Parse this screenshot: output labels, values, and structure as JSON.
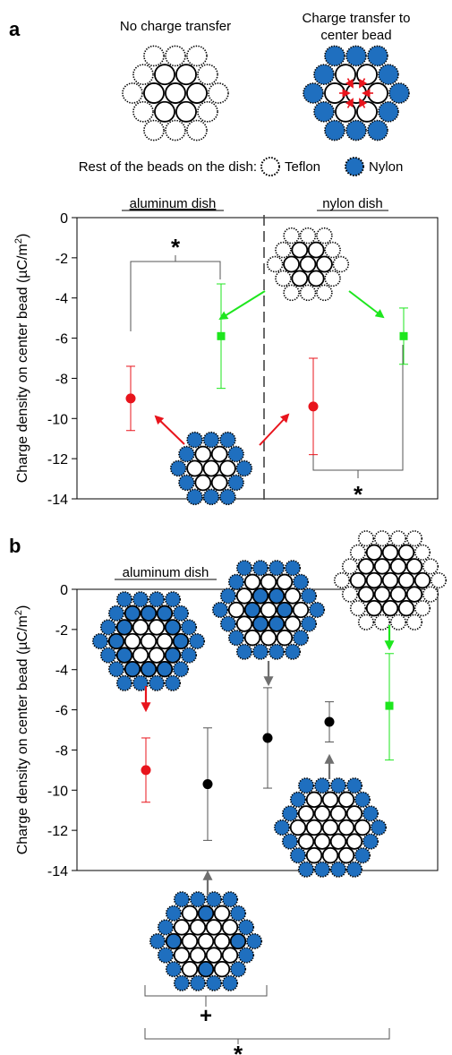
{
  "panel_a": {
    "letter": "a",
    "schematic": {
      "left_title": "No charge transfer",
      "right_title_line1": "Charge transfer to",
      "right_title_line2": "center bead",
      "legend_prefix": "Rest of the beads on the dish:",
      "legend_teflon": "Teflon",
      "legend_nylon": "Nylon"
    },
    "group_labels": [
      "aluminum dish",
      "nylon dish"
    ],
    "significance": [
      "*",
      "*"
    ]
  },
  "panel_b": {
    "letter": "b",
    "group_label": "aluminum dish",
    "significance": [
      "+",
      "*"
    ]
  },
  "colors": {
    "nylon_blue": "#1f6fbf",
    "red": "#e8141c",
    "green": "#1ee61e",
    "dark_gray": "#6f6f6f",
    "black": "#000000"
  },
  "chart_data": [
    {
      "type": "scatter",
      "panel": "a",
      "ylabel": "Charge density on center bead (μC/m²)",
      "ylim": [
        -14,
        0
      ],
      "yticks": [
        "0",
        "-2",
        "-4",
        "-6",
        "-8",
        "-10",
        "-12",
        "-14"
      ],
      "grid": false,
      "divider": "dashed vertical line between aluminum dish and nylon dish",
      "points": [
        {
          "group": "aluminum dish",
          "dish_beads": "Nylon",
          "color": "#e8141c",
          "marker": "circle",
          "y": -9.0,
          "err_low": -10.6,
          "err_high": -7.4
        },
        {
          "group": "aluminum dish",
          "dish_beads": "Teflon",
          "color": "#1ee61e",
          "marker": "square",
          "y": -5.9,
          "err_low": -8.5,
          "err_high": -3.3
        },
        {
          "group": "nylon dish",
          "dish_beads": "Nylon",
          "color": "#e8141c",
          "marker": "circle",
          "y": -9.4,
          "err_low": -11.8,
          "err_high": -7.0
        },
        {
          "group": "nylon dish",
          "dish_beads": "Teflon",
          "color": "#1ee61e",
          "marker": "square",
          "y": -5.9,
          "err_low": -7.3,
          "err_high": -4.5
        }
      ]
    },
    {
      "type": "scatter",
      "panel": "b",
      "ylabel": "Charge density on center bead (μC/m²)",
      "ylim": [
        -14,
        0
      ],
      "yticks": [
        "0",
        "-2",
        "-4",
        "-6",
        "-8",
        "-10",
        "-12",
        "-14"
      ],
      "grid": false,
      "points": [
        {
          "color": "#e8141c",
          "marker": "circle",
          "y": -9.0,
          "err_low": -10.6,
          "err_high": -7.4
        },
        {
          "color": "#000000",
          "marker": "circle",
          "y": -9.7,
          "err_low": -12.5,
          "err_high": -6.9
        },
        {
          "color": "#000000",
          "marker": "circle",
          "y": -7.4,
          "err_low": -9.9,
          "err_high": -4.9
        },
        {
          "color": "#000000",
          "marker": "circle",
          "y": -6.6,
          "err_low": -7.6,
          "err_high": -5.6
        },
        {
          "color": "#1ee61e",
          "marker": "square",
          "y": -5.8,
          "err_low": -8.5,
          "err_high": -3.2
        }
      ]
    }
  ]
}
